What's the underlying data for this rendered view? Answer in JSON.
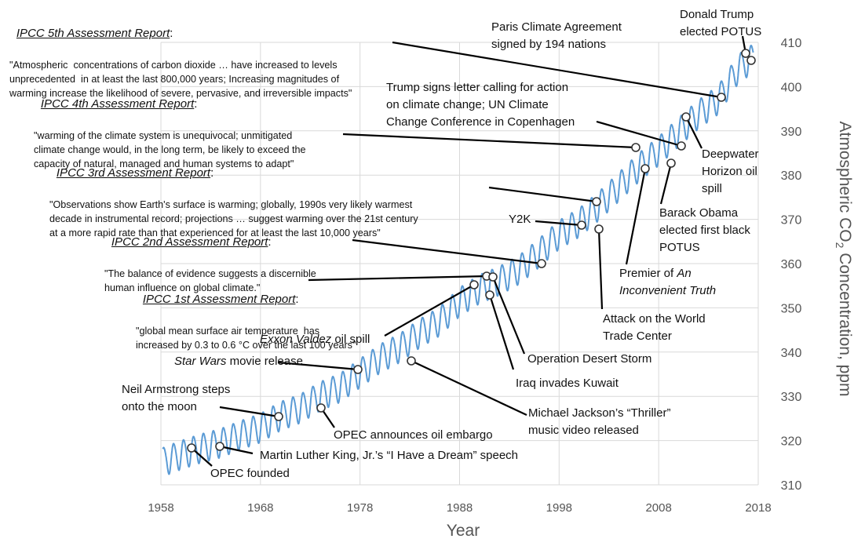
{
  "chart_data": {
    "type": "line",
    "xlabel": "Year",
    "ylabel_pre": "Atmospheric CO",
    "ylabel_sub": "2",
    "ylabel_post": " Concentration, ppm",
    "xlim": [
      1958,
      2018
    ],
    "ylim": [
      310,
      410
    ],
    "x_ticks": [
      1958,
      1968,
      1978,
      1988,
      1998,
      2008,
      2018
    ],
    "y_ticks": [
      310,
      320,
      330,
      340,
      350,
      360,
      370,
      380,
      390,
      400,
      410
    ],
    "grid": true,
    "line_color": "#5b9bd5",
    "series": [
      {
        "x": [
          1958.2,
          1960,
          1962,
          1964,
          1966,
          1968,
          1970,
          1972,
          1974,
          1976,
          1978,
          1980,
          1982,
          1984,
          1986,
          1988,
          1990,
          1992,
          1994,
          1996,
          1998,
          2000,
          2002,
          2004,
          2006,
          2008,
          2010,
          2012,
          2014,
          2016,
          2017.5
        ],
        "values": [
          315.3,
          316.9,
          318.4,
          319.6,
          321.4,
          323.0,
          325.7,
          327.4,
          330.2,
          332.1,
          335.4,
          338.7,
          341.1,
          344.4,
          347.1,
          351.5,
          354.4,
          356.3,
          358.8,
          362.6,
          366.7,
          369.4,
          373.2,
          377.5,
          381.9,
          385.6,
          389.9,
          393.9,
          397.2,
          404.2,
          406.6
        ],
        "seasonal_amplitude_ppm": 3.2
      }
    ],
    "ipcc": [
      {
        "title": "IPCC 5th Assessment Report",
        "suffix": ":",
        "quote": "\"Atmospheric  concentrations of carbon dioxide … have increased to levels\nunprecedented  in at least the last 800,000 years; Increasing magnitudes of\nwarming increase the likelihood of severe, pervasive, and irreversible impacts\""
      },
      {
        "title": "IPCC 4th Assessment Report",
        "suffix": ":",
        "quote": "\"warming of the climate system is unequivocal; unmitigated\nclimate change would, in the long term, be likely to exceed the\ncapacity of natural, managed and human systems to adapt\""
      },
      {
        "title": "IPCC 3rd Assessment Report",
        "suffix": ":",
        "quote": "\"Observations show Earth's surface is warming; globally, 1990s very likely warmest\ndecade in instrumental record; projections … suggest warming over the 21st century\nat a more rapid rate than that experienced for at least the last 10,000 years\""
      },
      {
        "title": "IPCC 2nd Assessment Report",
        "suffix": ":",
        "quote": "\"The balance of evidence suggests a discernible\nhuman influence on global climate.\""
      },
      {
        "title": "IPCC 1st Assessment Report",
        "suffix": ":",
        "quote": "\"global mean surface air temperature  has\nincreased by 0.3 to 0.6 °C over the last 100 years\""
      }
    ],
    "events": {
      "paris": "Paris Climate Agreement\nsigned by 194 nations",
      "trump_elected": "Donald Trump\nelected POTUS",
      "trump_letter": "Trump signs letter calling for action\non climate change; UN Climate\nChange Conference in Copenhagen",
      "deepwater": "Deepwater\nHorizon oil\nspill",
      "obama": "Barack Obama\nelected first black\nPOTUS",
      "y2k": "Y2K",
      "premier_line1": "Premier of ",
      "premier_italic": "An",
      "premier_line2": "Inconvenient Truth",
      "wtc": "Attack on the World\nTrade Center",
      "desert_storm": "Operation Desert Storm",
      "iraq": "Iraq invades Kuwait",
      "exxon_italic": "Exxon Valdez",
      "exxon_rest": " oil spill",
      "starwars_italic": "Star Wars",
      "starwars_rest": " movie release",
      "armstrong": "Neil Armstrong steps\nonto the moon",
      "opec_embargo": "OPEC announces oil embargo",
      "thriller": "Michael Jackson’s “Thriller”\nmusic video released",
      "mlk": "Martin Luther King, Jr.’s “I Have a Dream” speech",
      "opec_founded": "OPEC founded"
    }
  }
}
